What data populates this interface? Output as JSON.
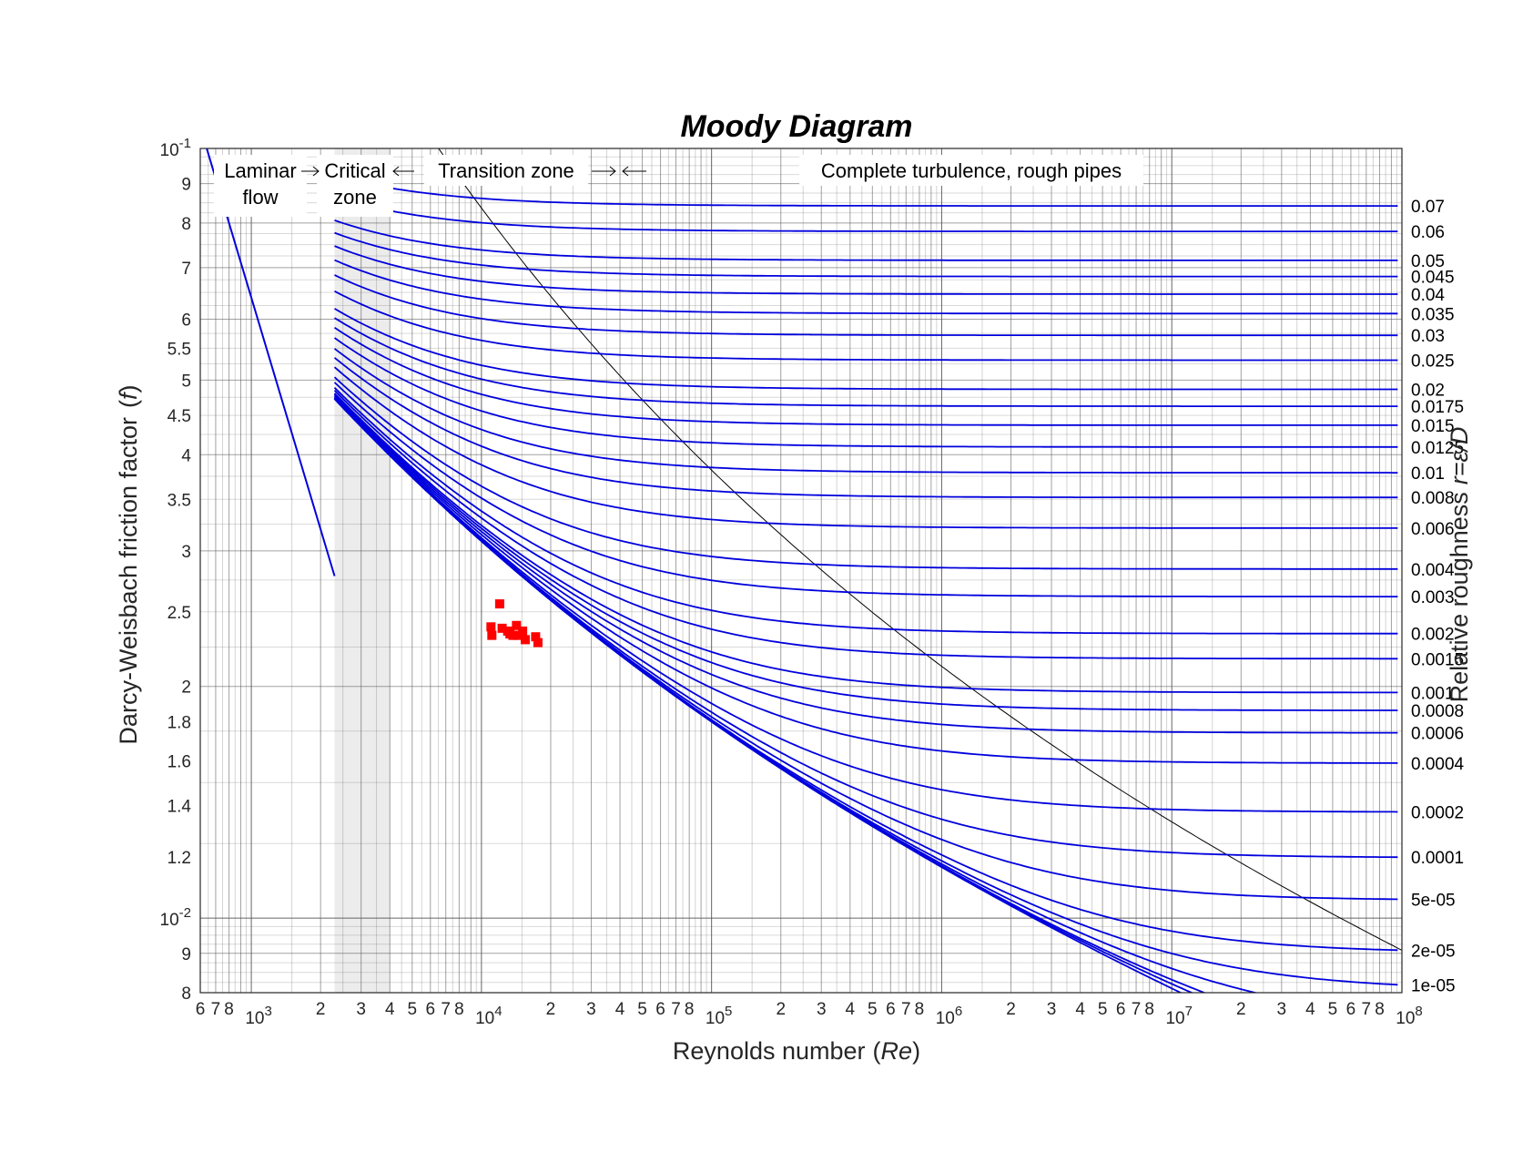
{
  "chart_data": {
    "type": "line",
    "title": "Moody Diagram",
    "xlabel": "Reynolds number",
    "xlabel_var": "Re",
    "ylabel": "Darcy-Weisbach friction factor",
    "ylabel_var": "f",
    "y2label": "Relative roughness",
    "y2label_var": "r=ε/D",
    "x_scale": "log",
    "y_scale": "log",
    "xlim": [
      600,
      100000000
    ],
    "ylim": [
      0.008,
      0.1
    ],
    "grid": true,
    "x_major_ticks": [
      {
        "value": 1000,
        "label": "10",
        "exp": "3"
      },
      {
        "value": 10000,
        "label": "10",
        "exp": "4"
      },
      {
        "value": 100000,
        "label": "10",
        "exp": "5"
      },
      {
        "value": 1000000,
        "label": "10",
        "exp": "6"
      },
      {
        "value": 10000000,
        "label": "10",
        "exp": "7"
      },
      {
        "value": 100000000,
        "label": "10",
        "exp": "8"
      }
    ],
    "x_minor_tick_labels": [
      "2",
      "3",
      "4",
      "5",
      "6",
      "7",
      "8"
    ],
    "y_major_ticks": [
      {
        "value": 0.1,
        "label": "10",
        "exp": "-1"
      },
      {
        "value": 0.01,
        "label": "10",
        "exp": "-2"
      }
    ],
    "y_minor_ticks": [
      {
        "value": 0.09,
        "label": "9"
      },
      {
        "value": 0.08,
        "label": "8"
      },
      {
        "value": 0.07,
        "label": "7"
      },
      {
        "value": 0.06,
        "label": "6"
      },
      {
        "value": 0.055,
        "label": "5.5"
      },
      {
        "value": 0.05,
        "label": "5"
      },
      {
        "value": 0.045,
        "label": "4.5"
      },
      {
        "value": 0.04,
        "label": "4"
      },
      {
        "value": 0.035,
        "label": "3.5"
      },
      {
        "value": 0.03,
        "label": "3"
      },
      {
        "value": 0.025,
        "label": "2.5"
      },
      {
        "value": 0.02,
        "label": "2"
      },
      {
        "value": 0.018,
        "label": "1.8"
      },
      {
        "value": 0.016,
        "label": "1.6"
      },
      {
        "value": 0.014,
        "label": "1.4"
      },
      {
        "value": 0.012,
        "label": "1.2"
      },
      {
        "value": 0.009,
        "label": "9"
      },
      {
        "value": 0.008,
        "label": "8"
      }
    ],
    "zones": [
      {
        "line1": "Laminar",
        "line2": "flow"
      },
      {
        "line1": "Critical",
        "line2": "zone"
      },
      {
        "line1": "Transition zone",
        "line2": ""
      },
      {
        "line1": "Complete turbulence, rough pipes",
        "line2": ""
      }
    ],
    "critical_zone_re": [
      2300,
      4000
    ],
    "laminar": {
      "formula": "f = 64 / Re",
      "re_range": [
        600,
        2300
      ]
    },
    "relative_roughness": [
      {
        "value": 0.07,
        "label": "0.07"
      },
      {
        "value": 0.06,
        "label": "0.06"
      },
      {
        "value": 0.05,
        "label": "0.05"
      },
      {
        "value": 0.045,
        "label": "0.045"
      },
      {
        "value": 0.04,
        "label": "0.04"
      },
      {
        "value": 0.035,
        "label": "0.035"
      },
      {
        "value": 0.03,
        "label": "0.03"
      },
      {
        "value": 0.025,
        "label": "0.025"
      },
      {
        "value": 0.02,
        "label": "0.02"
      },
      {
        "value": 0.0175,
        "label": "0.0175"
      },
      {
        "value": 0.015,
        "label": "0.015"
      },
      {
        "value": 0.0125,
        "label": "0.0125"
      },
      {
        "value": 0.01,
        "label": "0.01"
      },
      {
        "value": 0.008,
        "label": "0.008"
      },
      {
        "value": 0.006,
        "label": "0.006"
      },
      {
        "value": 0.004,
        "label": "0.004"
      },
      {
        "value": 0.003,
        "label": "0.003"
      },
      {
        "value": 0.002,
        "label": "0.002"
      },
      {
        "value": 0.0015,
        "label": "0.0015"
      },
      {
        "value": 0.001,
        "label": "0.001"
      },
      {
        "value": 0.0008,
        "label": "0.0008"
      },
      {
        "value": 0.0006,
        "label": "0.0006"
      },
      {
        "value": 0.0004,
        "label": "0.0004"
      },
      {
        "value": 0.0002,
        "label": "0.0002"
      },
      {
        "value": 0.0001,
        "label": "0.0001"
      },
      {
        "value": 5e-05,
        "label": "5e-05"
      },
      {
        "value": 2e-05,
        "label": "2e-05"
      },
      {
        "value": 1e-05,
        "label": "1e-05"
      }
    ],
    "extra_curves": [
      5e-06,
      2e-06,
      1e-06,
      0
    ],
    "colebrook_re_start": 2300,
    "measured_points": [
      {
        "re": 11000,
        "f": 0.0239
      },
      {
        "re": 11100,
        "f": 0.0233
      },
      {
        "re": 12000,
        "f": 0.0256
      },
      {
        "re": 12300,
        "f": 0.0238
      },
      {
        "re": 13000,
        "f": 0.0236
      },
      {
        "re": 13300,
        "f": 0.0234
      },
      {
        "re": 13700,
        "f": 0.0233
      },
      {
        "re": 14200,
        "f": 0.024
      },
      {
        "re": 14400,
        "f": 0.0233
      },
      {
        "re": 15100,
        "f": 0.0236
      },
      {
        "re": 15500,
        "f": 0.023
      },
      {
        "re": 17200,
        "f": 0.0232
      },
      {
        "re": 17600,
        "f": 0.0228
      }
    ],
    "colors": {
      "curves": "#0000dd",
      "points": "#ff0000",
      "grid": "#555555",
      "critical_shade": "#ececec",
      "boundary": "#000000"
    }
  }
}
